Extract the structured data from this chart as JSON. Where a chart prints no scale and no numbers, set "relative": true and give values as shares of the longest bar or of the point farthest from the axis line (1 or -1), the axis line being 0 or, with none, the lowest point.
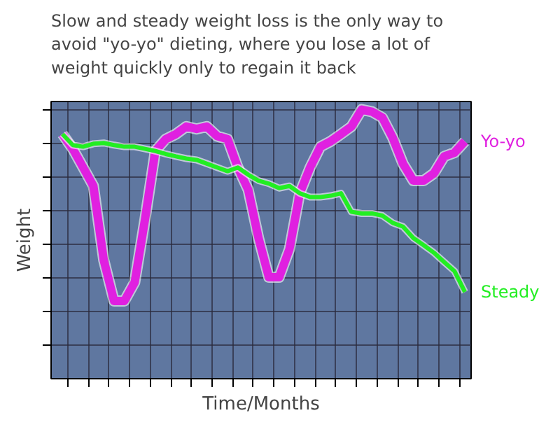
{
  "chart_data": {
    "type": "line",
    "title": "Slow and steady weight loss is the only way to avoid \"yo-yo\" dieting, where you lose a lot of weight quickly only to regain it back",
    "xlabel": "Time/Months",
    "ylabel": "Weight",
    "relative": true,
    "grid": true,
    "tick_labels": false,
    "marker": "none",
    "line_style": "solid",
    "categories": [
      null,
      null,
      null,
      null,
      null,
      null,
      null,
      null,
      null,
      null,
      null,
      null,
      null,
      null,
      null,
      null,
      null,
      null,
      null,
      null,
      null,
      null,
      null,
      null,
      null,
      null,
      null,
      null,
      null,
      null,
      null,
      null,
      null,
      null,
      null,
      null,
      null,
      null,
      null,
      null
    ],
    "series": [
      {
        "name": "Yo-yo",
        "color": "#e020e0",
        "values": [
          0.909,
          0.854,
          0.785,
          0.716,
          0.441,
          0.289,
          0.289,
          0.358,
          0.592,
          0.846,
          0.89,
          0.909,
          0.937,
          0.928,
          0.937,
          0.901,
          0.89,
          0.785,
          0.702,
          0.523,
          0.377,
          0.377,
          0.482,
          0.689,
          0.785,
          0.862,
          0.882,
          0.909,
          0.937,
          1.0,
          0.992,
          0.97,
          0.896,
          0.799,
          0.736,
          0.736,
          0.763,
          0.826,
          0.84,
          0.882
        ]
      },
      {
        "name": "Steady",
        "color": "#22ee22",
        "values": [
          0.909,
          0.868,
          0.862,
          0.873,
          0.876,
          0.868,
          0.862,
          0.862,
          0.854,
          0.846,
          0.835,
          0.826,
          0.818,
          0.813,
          0.799,
          0.785,
          0.771,
          0.785,
          0.758,
          0.736,
          0.725,
          0.708,
          0.716,
          0.689,
          0.675,
          0.675,
          0.68,
          0.689,
          0.62,
          0.614,
          0.614,
          0.606,
          0.579,
          0.565,
          0.523,
          0.496,
          0.468,
          0.433,
          0.399,
          0.322
        ]
      }
    ]
  }
}
